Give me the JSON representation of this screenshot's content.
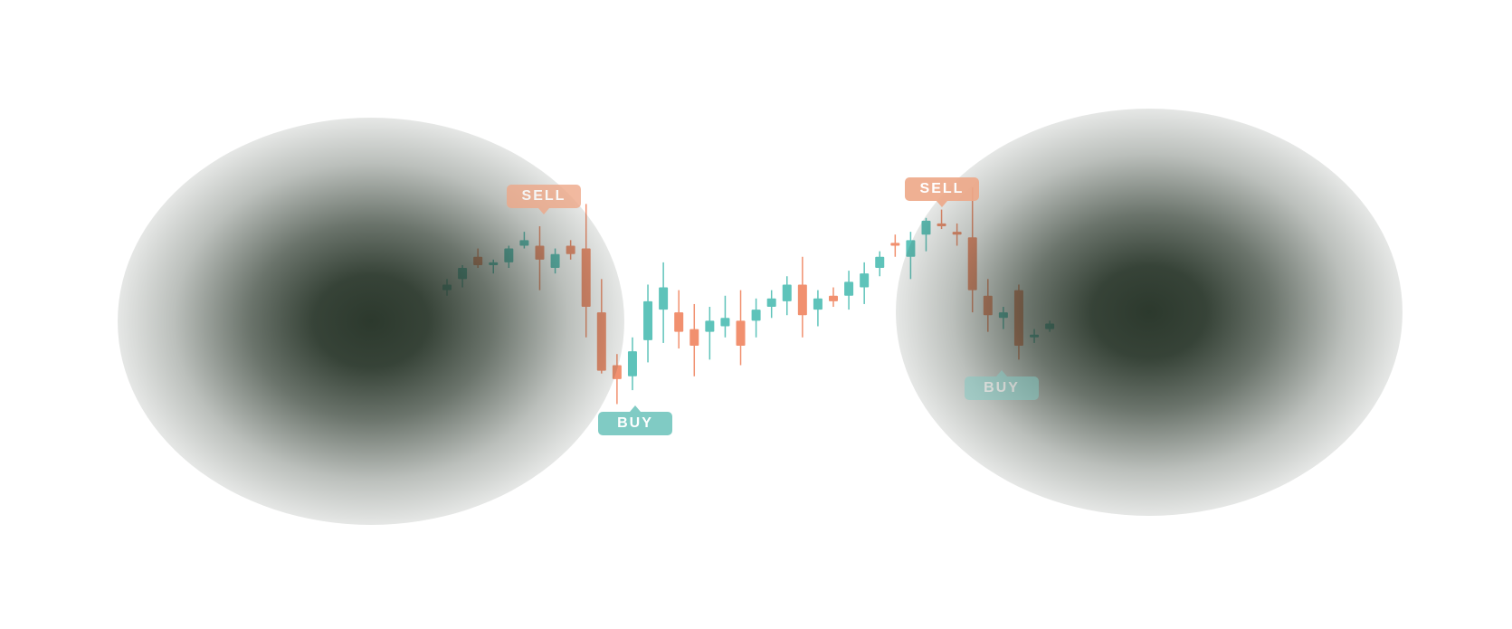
{
  "chart_data": {
    "type": "candlestick",
    "title": "",
    "xlabel": "",
    "ylabel": "",
    "ylim": [
      0,
      100
    ],
    "grid": false,
    "colors": {
      "up": "#4dbdb3",
      "down": "#f08560",
      "sell_badge": "#eea888",
      "buy_badge": "#80cbc4",
      "background": "#ffffff",
      "vignette": "#2c392d"
    },
    "candles": [
      {
        "o": 20,
        "h": 24,
        "l": 18,
        "c": 22
      },
      {
        "o": 24,
        "h": 29,
        "l": 21,
        "c": 28
      },
      {
        "o": 32,
        "h": 35,
        "l": 28,
        "c": 29
      },
      {
        "o": 29,
        "h": 31,
        "l": 26,
        "c": 30
      },
      {
        "o": 30,
        "h": 36,
        "l": 28,
        "c": 35
      },
      {
        "o": 36,
        "h": 41,
        "l": 35,
        "c": 38
      },
      {
        "o": 36,
        "h": 43,
        "l": 20,
        "c": 31
      },
      {
        "o": 28,
        "h": 35,
        "l": 26,
        "c": 33
      },
      {
        "o": 36,
        "h": 38,
        "l": 31,
        "c": 33
      },
      {
        "o": 35,
        "h": 51,
        "l": 3,
        "c": 14
      },
      {
        "o": 12,
        "h": 24,
        "l": -10,
        "c": -9
      },
      {
        "o": -7,
        "h": -3,
        "l": -21,
        "c": -12
      },
      {
        "o": -11,
        "h": 3,
        "l": -16,
        "c": -2
      },
      {
        "o": 2,
        "h": 22,
        "l": -6,
        "c": 16
      },
      {
        "o": 13,
        "h": 30,
        "l": 1,
        "c": 21
      },
      {
        "o": 12,
        "h": 20,
        "l": -1,
        "c": 5
      },
      {
        "o": 6,
        "h": 15,
        "l": -11,
        "c": 0
      },
      {
        "o": 5,
        "h": 14,
        "l": -5,
        "c": 9
      },
      {
        "o": 7,
        "h": 18,
        "l": 3,
        "c": 10
      },
      {
        "o": 9,
        "h": 20,
        "l": -7,
        "c": 0
      },
      {
        "o": 9,
        "h": 17,
        "l": 3,
        "c": 13
      },
      {
        "o": 14,
        "h": 20,
        "l": 10,
        "c": 17
      },
      {
        "o": 16,
        "h": 25,
        "l": 11,
        "c": 22
      },
      {
        "o": 22,
        "h": 32,
        "l": 3,
        "c": 11
      },
      {
        "o": 13,
        "h": 20,
        "l": 7,
        "c": 17
      },
      {
        "o": 18,
        "h": 21,
        "l": 14,
        "c": 16
      },
      {
        "o": 18,
        "h": 27,
        "l": 13,
        "c": 23
      },
      {
        "o": 21,
        "h": 30,
        "l": 15,
        "c": 26
      },
      {
        "o": 28,
        "h": 34,
        "l": 25,
        "c": 32
      },
      {
        "o": 37,
        "h": 40,
        "l": 32,
        "c": 36
      },
      {
        "o": 32,
        "h": 41,
        "l": 24,
        "c": 38
      },
      {
        "o": 40,
        "h": 46,
        "l": 34,
        "c": 45
      },
      {
        "o": 44,
        "h": 49,
        "l": 42,
        "c": 43
      },
      {
        "o": 41,
        "h": 44,
        "l": 36,
        "c": 40
      },
      {
        "o": 39,
        "h": 57,
        "l": 12,
        "c": 20
      },
      {
        "o": 18,
        "h": 24,
        "l": 5,
        "c": 11
      },
      {
        "o": 10,
        "h": 14,
        "l": 6,
        "c": 12
      },
      {
        "o": 20,
        "h": 22,
        "l": -5,
        "c": 0
      },
      {
        "o": 3,
        "h": 6,
        "l": 1,
        "c": 4
      },
      {
        "o": 6,
        "h": 9,
        "l": 5,
        "c": 8
      }
    ],
    "annotations": [
      {
        "label": "SELL",
        "candle": 6,
        "kind": "sell"
      },
      {
        "label": "BUY",
        "candle": 10,
        "kind": "buy"
      },
      {
        "label": "SELL",
        "candle": 33,
        "kind": "sell"
      },
      {
        "label": "BUY",
        "candle": 37,
        "kind": "buy"
      }
    ]
  }
}
